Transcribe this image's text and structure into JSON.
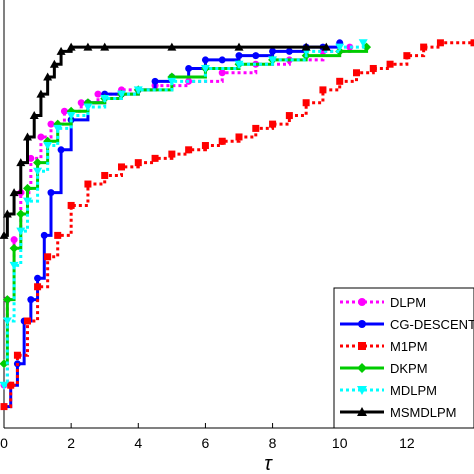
{
  "chart_data": {
    "type": "line",
    "title": "",
    "xlabel": "τ",
    "ylabel": "",
    "xlim": [
      0,
      14
    ],
    "ylim": [
      0,
      1
    ],
    "x_ticks": [
      0,
      2,
      4,
      6,
      8,
      10,
      12
    ],
    "x_tick_labels": [
      "0",
      "2",
      "4",
      "6",
      "8",
      "10",
      "12"
    ],
    "grid": false,
    "legend_position": "bottom-right",
    "series": [
      {
        "name": "DLPM",
        "color": "#ff00ff",
        "dash": "dotted",
        "marker": "circle",
        "x": [
          0,
          0.1,
          0.3,
          0.5,
          0.8,
          1.1,
          1.4,
          1.8,
          2.3,
          2.8,
          3.5,
          4.5,
          5.5,
          6.5,
          7.5,
          8.5,
          9.5,
          10.3
        ],
        "y": [
          0.1,
          0.3,
          0.44,
          0.55,
          0.63,
          0.68,
          0.71,
          0.74,
          0.76,
          0.78,
          0.79,
          0.8,
          0.81,
          0.83,
          0.85,
          0.86,
          0.88,
          0.89
        ]
      },
      {
        "name": "CG-DESCENT",
        "color": "#0000ff",
        "dash": "solid",
        "marker": "circle",
        "x": [
          0,
          0.2,
          0.4,
          0.6,
          0.8,
          1.0,
          1.2,
          1.4,
          1.7,
          2.0,
          2.5,
          3.0,
          3.5,
          4.0,
          4.5,
          5.0,
          5.5,
          6.0,
          6.5,
          7.0,
          7.5,
          8.0,
          8.5,
          9.0,
          9.5,
          10.0
        ],
        "y": [
          0.05,
          0.1,
          0.15,
          0.25,
          0.3,
          0.35,
          0.45,
          0.55,
          0.65,
          0.72,
          0.76,
          0.78,
          0.78,
          0.79,
          0.81,
          0.82,
          0.84,
          0.86,
          0.86,
          0.87,
          0.87,
          0.88,
          0.88,
          0.89,
          0.89,
          0.9
        ]
      },
      {
        "name": "M1PM",
        "color": "#ff0000",
        "dash": "dotted",
        "marker": "square",
        "x": [
          0,
          0.2,
          0.4,
          0.7,
          1.0,
          1.3,
          1.6,
          2.0,
          2.5,
          3.0,
          3.5,
          4.0,
          4.5,
          5.0,
          5.5,
          6.0,
          6.5,
          7.0,
          7.5,
          8.0,
          8.5,
          9.0,
          9.5,
          10.0,
          10.5,
          11.0,
          11.5,
          12.0,
          12.5,
          13.0,
          14.0
        ],
        "y": [
          0.05,
          0.1,
          0.17,
          0.25,
          0.33,
          0.4,
          0.45,
          0.52,
          0.57,
          0.59,
          0.61,
          0.62,
          0.63,
          0.64,
          0.65,
          0.66,
          0.67,
          0.68,
          0.7,
          0.71,
          0.73,
          0.76,
          0.79,
          0.81,
          0.83,
          0.84,
          0.85,
          0.87,
          0.89,
          0.9,
          0.9
        ]
      },
      {
        "name": "DKPM",
        "color": "#00cc00",
        "dash": "solid",
        "marker": "diamond",
        "x": [
          0,
          0.1,
          0.3,
          0.5,
          0.7,
          1.0,
          1.3,
          1.6,
          2.0,
          2.5,
          3.0,
          3.5,
          4.0,
          5.0,
          6.0,
          7.0,
          8.0,
          9.0,
          10.0,
          10.8
        ],
        "y": [
          0.15,
          0.3,
          0.42,
          0.5,
          0.56,
          0.62,
          0.67,
          0.71,
          0.74,
          0.76,
          0.77,
          0.78,
          0.79,
          0.82,
          0.84,
          0.85,
          0.86,
          0.87,
          0.88,
          0.89
        ]
      },
      {
        "name": "MDLPM",
        "color": "#00ffff",
        "dash": "dotted",
        "marker": "triangle-down",
        "x": [
          0,
          0.1,
          0.3,
          0.5,
          0.7,
          1.0,
          1.3,
          1.6,
          2.0,
          2.5,
          3.0,
          3.5,
          4.0,
          5.0,
          6.0,
          7.0,
          8.0,
          9.0,
          10.0,
          10.7
        ],
        "y": [
          0.1,
          0.25,
          0.38,
          0.46,
          0.53,
          0.6,
          0.66,
          0.7,
          0.73,
          0.75,
          0.77,
          0.78,
          0.79,
          0.81,
          0.84,
          0.85,
          0.86,
          0.88,
          0.89,
          0.9
        ]
      },
      {
        "name": "MSMDLPM",
        "color": "#000000",
        "dash": "solid",
        "marker": "triangle-up",
        "x": [
          0,
          0.1,
          0.3,
          0.5,
          0.7,
          0.9,
          1.1,
          1.3,
          1.5,
          1.7,
          2.0,
          2.5,
          3.0,
          5.0,
          7.0,
          9.0,
          9.6
        ],
        "y": [
          0.45,
          0.5,
          0.55,
          0.62,
          0.68,
          0.73,
          0.78,
          0.82,
          0.85,
          0.88,
          0.89,
          0.89,
          0.89,
          0.89,
          0.89,
          0.89,
          0.89
        ]
      }
    ]
  }
}
